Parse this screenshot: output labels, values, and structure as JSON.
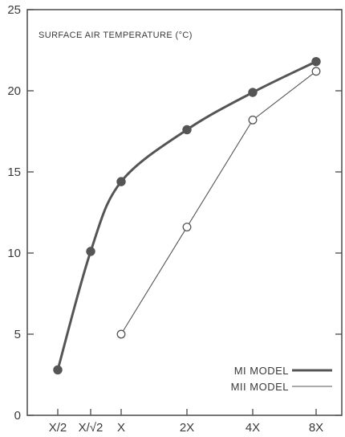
{
  "chart_data": {
    "type": "line",
    "title": "SURFACE AIR TEMPERATURE (°C)",
    "xlabel": "",
    "ylabel": "",
    "categories": [
      "X/2",
      "X/√2",
      "X",
      "2X",
      "4X",
      "8X"
    ],
    "ylim": [
      0,
      25
    ],
    "yticks": [
      0,
      5,
      10,
      15,
      20,
      25
    ],
    "grid": false,
    "legend_position": "bottom-right",
    "series": [
      {
        "name": "MI MODEL",
        "values": [
          2.8,
          10.1,
          14.4,
          17.6,
          19.9,
          21.8
        ],
        "marker": "filled-circle",
        "line": "thick",
        "color": "#555555"
      },
      {
        "name": "MII MODEL",
        "values": [
          null,
          null,
          5.0,
          11.6,
          18.2,
          21.2
        ],
        "marker": "open-circle",
        "line": "thin",
        "color": "#555555"
      }
    ]
  }
}
